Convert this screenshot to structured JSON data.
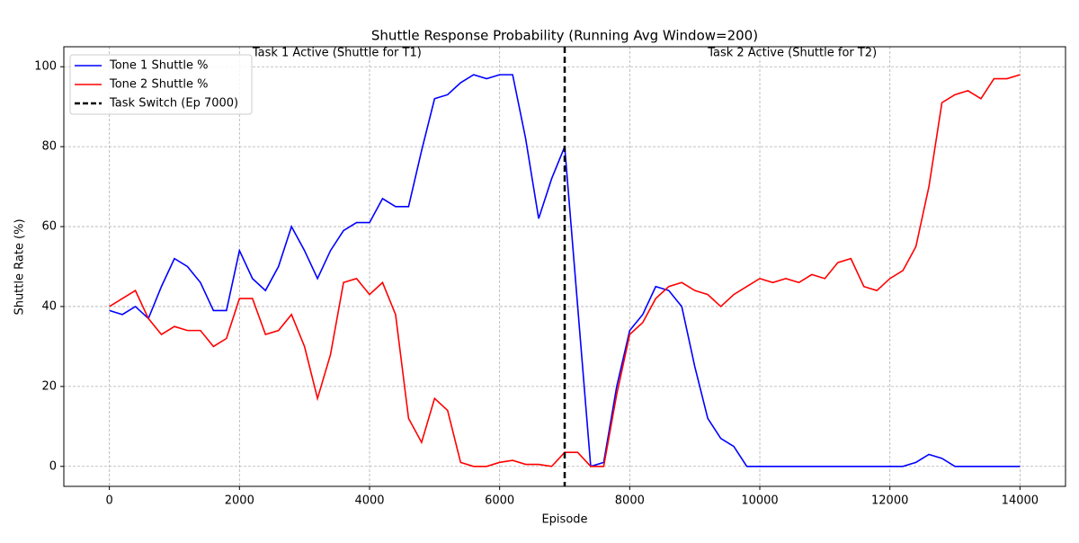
{
  "chart_data": {
    "type": "line",
    "title": "Shuttle Response Probability (Running Avg Window=200)",
    "xlabel": "Episode",
    "ylabel": "Shuttle Rate (%)",
    "annotations": [
      "Task 1 Active (Shuttle for T1)",
      "Task 2 Active (Shuttle for T2)"
    ],
    "x": [
      0,
      200,
      400,
      600,
      800,
      1000,
      1200,
      1400,
      1600,
      1800,
      2000,
      2200,
      2400,
      2600,
      2800,
      3000,
      3200,
      3400,
      3600,
      3800,
      4000,
      4200,
      4400,
      4600,
      4800,
      5000,
      5200,
      5400,
      5600,
      5800,
      6000,
      6200,
      6400,
      6600,
      6800,
      7000,
      7200,
      7400,
      7600,
      7800,
      8000,
      8200,
      8400,
      8600,
      8800,
      9000,
      9200,
      9400,
      9600,
      9800,
      10000,
      10200,
      10400,
      10600,
      10800,
      11000,
      11200,
      11400,
      11600,
      11800,
      12000,
      12200,
      12400,
      12600,
      12800,
      13000,
      13200,
      13400,
      13600,
      13800,
      14000
    ],
    "series": [
      {
        "name": "Tone 1 Shuttle %",
        "color": "#0000ff",
        "values": [
          39,
          38,
          40,
          37,
          45,
          52,
          50,
          46,
          39,
          39,
          54,
          47,
          44,
          50,
          60,
          54,
          47,
          54,
          59,
          61,
          61,
          67,
          65,
          65,
          79,
          92,
          93,
          96,
          98,
          97,
          98,
          98,
          82,
          62,
          72,
          80,
          40,
          0,
          1,
          20,
          34,
          38,
          45,
          44,
          40,
          25,
          12,
          7,
          5,
          0,
          0,
          0,
          0,
          0,
          0,
          0,
          0,
          0,
          0,
          0,
          0,
          0,
          1,
          3,
          2,
          0,
          0,
          0,
          0,
          0,
          0
        ]
      },
      {
        "name": "Tone 2 Shuttle %",
        "color": "#ff0000",
        "values": [
          40,
          42,
          44,
          37,
          33,
          35,
          34,
          34,
          30,
          32,
          42,
          42,
          33,
          34,
          38,
          30,
          17,
          28,
          46,
          47,
          43,
          46,
          38,
          12,
          6,
          17,
          14,
          1,
          0,
          0,
          1,
          1.5,
          0.5,
          0.5,
          0,
          3.5,
          3.5,
          0,
          0,
          18,
          33,
          36,
          42,
          45,
          46,
          44,
          43,
          40,
          43,
          45,
          47,
          46,
          47,
          46,
          48,
          47,
          51,
          52,
          45,
          44,
          47,
          49,
          55,
          70,
          91,
          93,
          94,
          92,
          97,
          97,
          98
        ]
      }
    ],
    "task_switch": {
      "x": 7000,
      "label": "Task Switch (Ep 7000)",
      "color": "#000000"
    },
    "xlim": [
      -700,
      14700
    ],
    "ylim": [
      -5,
      105
    ],
    "xticks": [
      0,
      2000,
      4000,
      6000,
      8000,
      10000,
      12000,
      14000
    ],
    "yticks": [
      0,
      20,
      40,
      60,
      80,
      100
    ],
    "grid": true,
    "legend": "upper left"
  }
}
